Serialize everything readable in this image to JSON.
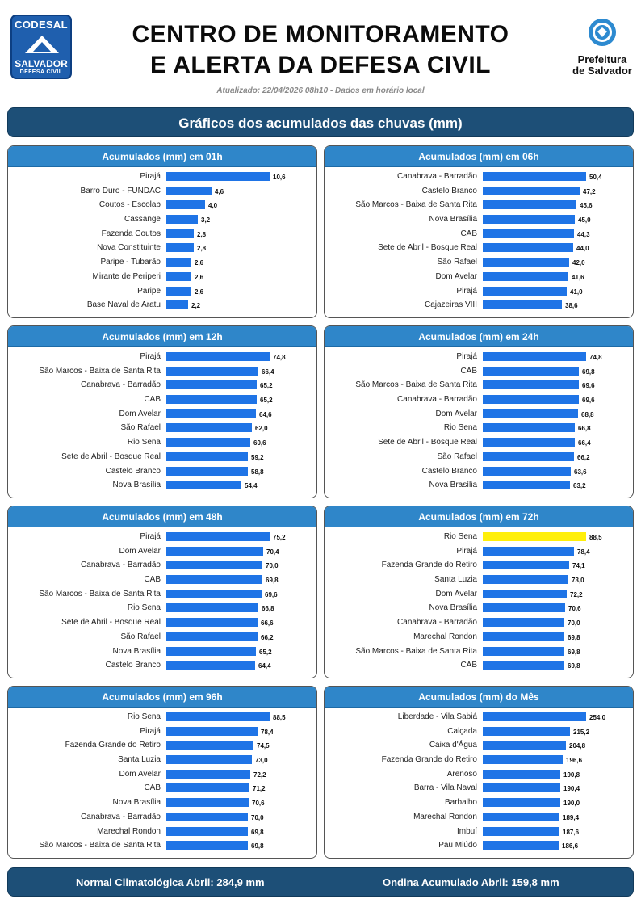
{
  "header": {
    "logo_left": {
      "line1": "CODESAL",
      "line2": "SALVADOR",
      "line3": "DEFESA CIVIL"
    },
    "title_line1": "CENTRO DE MONITORAMENTO",
    "title_line2": "E ALERTA DA DEFESA CIVIL",
    "updated": "Atualizado: 22/04/2026 08h10 - Dados em horário local",
    "logo_right": {
      "line1": "Prefeitura",
      "line2": "de Salvador"
    }
  },
  "banner": "Gráficos dos acumulados das chuvas (mm)",
  "colors": {
    "bar": "#1f74e6",
    "highlight": "#ffef0a",
    "header": "#2f86c9",
    "banner": "#1d4f77"
  },
  "panels": [
    {
      "title": "Acumulados (mm) em 01h",
      "max": 10.6,
      "rows": [
        {
          "label": "Pirajá",
          "value": 10.6,
          "text": "10,6"
        },
        {
          "label": "Barro Duro - FUNDAC",
          "value": 4.6,
          "text": "4,6"
        },
        {
          "label": "Coutos - Escolab",
          "value": 4.0,
          "text": "4,0"
        },
        {
          "label": "Cassange",
          "value": 3.2,
          "text": "3,2"
        },
        {
          "label": "Fazenda Coutos",
          "value": 2.8,
          "text": "2,8"
        },
        {
          "label": "Nova Constituinte",
          "value": 2.8,
          "text": "2,8"
        },
        {
          "label": "Paripe - Tubarão",
          "value": 2.6,
          "text": "2,6"
        },
        {
          "label": "Mirante de Periperi",
          "value": 2.6,
          "text": "2,6"
        },
        {
          "label": "Paripe",
          "value": 2.6,
          "text": "2,6"
        },
        {
          "label": "Base Naval de Aratu",
          "value": 2.2,
          "text": "2,2"
        }
      ]
    },
    {
      "title": "Acumulados (mm) em 06h",
      "max": 50.4,
      "rows": [
        {
          "label": "Canabrava - Barradão",
          "value": 50.4,
          "text": "50,4"
        },
        {
          "label": "Castelo Branco",
          "value": 47.2,
          "text": "47,2"
        },
        {
          "label": "São Marcos - Baixa de Santa Rita",
          "value": 45.6,
          "text": "45,6"
        },
        {
          "label": "Nova Brasília",
          "value": 45.0,
          "text": "45,0"
        },
        {
          "label": "CAB",
          "value": 44.3,
          "text": "44,3"
        },
        {
          "label": "Sete de Abril - Bosque Real",
          "value": 44.0,
          "text": "44,0"
        },
        {
          "label": "São Rafael",
          "value": 42.0,
          "text": "42,0"
        },
        {
          "label": "Dom Avelar",
          "value": 41.6,
          "text": "41,6"
        },
        {
          "label": "Pirajá",
          "value": 41.0,
          "text": "41,0"
        },
        {
          "label": "Cajazeiras VIII",
          "value": 38.6,
          "text": "38,6"
        }
      ]
    },
    {
      "title": "Acumulados (mm) em 12h",
      "max": 74.8,
      "rows": [
        {
          "label": "Pirajá",
          "value": 74.8,
          "text": "74,8"
        },
        {
          "label": "São Marcos - Baixa de Santa Rita",
          "value": 66.4,
          "text": "66,4"
        },
        {
          "label": "Canabrava - Barradão",
          "value": 65.2,
          "text": "65,2"
        },
        {
          "label": "CAB",
          "value": 65.2,
          "text": "65,2"
        },
        {
          "label": "Dom Avelar",
          "value": 64.6,
          "text": "64,6"
        },
        {
          "label": "São Rafael",
          "value": 62.0,
          "text": "62,0"
        },
        {
          "label": "Rio Sena",
          "value": 60.6,
          "text": "60,6"
        },
        {
          "label": "Sete de Abril - Bosque Real",
          "value": 59.2,
          "text": "59,2"
        },
        {
          "label": "Castelo Branco",
          "value": 58.8,
          "text": "58,8"
        },
        {
          "label": "Nova Brasília",
          "value": 54.4,
          "text": "54,4"
        }
      ]
    },
    {
      "title": "Acumulados (mm) em 24h",
      "max": 74.8,
      "rows": [
        {
          "label": "Pirajá",
          "value": 74.8,
          "text": "74,8"
        },
        {
          "label": "CAB",
          "value": 69.8,
          "text": "69,8"
        },
        {
          "label": "São Marcos - Baixa de Santa Rita",
          "value": 69.6,
          "text": "69,6"
        },
        {
          "label": "Canabrava - Barradão",
          "value": 69.6,
          "text": "69,6"
        },
        {
          "label": "Dom Avelar",
          "value": 68.8,
          "text": "68,8"
        },
        {
          "label": "Rio Sena",
          "value": 66.8,
          "text": "66,8"
        },
        {
          "label": "Sete de Abril - Bosque Real",
          "value": 66.4,
          "text": "66,4"
        },
        {
          "label": "São Rafael",
          "value": 66.2,
          "text": "66,2"
        },
        {
          "label": "Castelo Branco",
          "value": 63.6,
          "text": "63,6"
        },
        {
          "label": "Nova Brasília",
          "value": 63.2,
          "text": "63,2"
        }
      ]
    },
    {
      "title": "Acumulados (mm) em 48h",
      "max": 75.2,
      "rows": [
        {
          "label": "Pirajá",
          "value": 75.2,
          "text": "75,2"
        },
        {
          "label": "Dom Avelar",
          "value": 70.4,
          "text": "70,4"
        },
        {
          "label": "Canabrava - Barradão",
          "value": 70.0,
          "text": "70,0"
        },
        {
          "label": "CAB",
          "value": 69.8,
          "text": "69,8"
        },
        {
          "label": "São Marcos - Baixa de Santa Rita",
          "value": 69.6,
          "text": "69,6"
        },
        {
          "label": "Rio Sena",
          "value": 66.8,
          "text": "66,8"
        },
        {
          "label": "Sete de Abril - Bosque Real",
          "value": 66.6,
          "text": "66,6"
        },
        {
          "label": "São Rafael",
          "value": 66.2,
          "text": "66,2"
        },
        {
          "label": "Nova Brasília",
          "value": 65.2,
          "text": "65,2"
        },
        {
          "label": "Castelo Branco",
          "value": 64.4,
          "text": "64,4"
        }
      ]
    },
    {
      "title": "Acumulados (mm) em 72h",
      "max": 88.5,
      "rows": [
        {
          "label": "Rio Sena",
          "value": 88.5,
          "text": "88,5",
          "highlight": true
        },
        {
          "label": "Pirajá",
          "value": 78.4,
          "text": "78,4"
        },
        {
          "label": "Fazenda Grande do Retiro",
          "value": 74.1,
          "text": "74,1"
        },
        {
          "label": "Santa Luzia",
          "value": 73.0,
          "text": "73,0"
        },
        {
          "label": "Dom Avelar",
          "value": 72.2,
          "text": "72,2"
        },
        {
          "label": "Nova Brasília",
          "value": 70.6,
          "text": "70,6"
        },
        {
          "label": "Canabrava - Barradão",
          "value": 70.0,
          "text": "70,0"
        },
        {
          "label": "Marechal Rondon",
          "value": 69.8,
          "text": "69,8"
        },
        {
          "label": "São Marcos - Baixa de Santa Rita",
          "value": 69.8,
          "text": "69,8"
        },
        {
          "label": "CAB",
          "value": 69.8,
          "text": "69,8"
        }
      ]
    },
    {
      "title": "Acumulados (mm) em 96h",
      "max": 88.5,
      "rows": [
        {
          "label": "Rio Sena",
          "value": 88.5,
          "text": "88,5"
        },
        {
          "label": "Pirajá",
          "value": 78.4,
          "text": "78,4"
        },
        {
          "label": "Fazenda Grande do Retiro",
          "value": 74.5,
          "text": "74,5"
        },
        {
          "label": "Santa Luzia",
          "value": 73.0,
          "text": "73,0"
        },
        {
          "label": "Dom Avelar",
          "value": 72.2,
          "text": "72,2"
        },
        {
          "label": "CAB",
          "value": 71.2,
          "text": "71,2"
        },
        {
          "label": "Nova Brasília",
          "value": 70.6,
          "text": "70,6"
        },
        {
          "label": "Canabrava - Barradão",
          "value": 70.0,
          "text": "70,0"
        },
        {
          "label": "Marechal Rondon",
          "value": 69.8,
          "text": "69,8"
        },
        {
          "label": "São Marcos - Baixa de Santa Rita",
          "value": 69.8,
          "text": "69,8"
        }
      ]
    },
    {
      "title": "Acumulados (mm) do Mês",
      "max": 254.0,
      "rows": [
        {
          "label": "Liberdade - Vila Sabiá",
          "value": 254.0,
          "text": "254,0"
        },
        {
          "label": "Calçada",
          "value": 215.2,
          "text": "215,2"
        },
        {
          "label": "Caixa d'Água",
          "value": 204.8,
          "text": "204,8"
        },
        {
          "label": "Fazenda Grande do Retiro",
          "value": 196.6,
          "text": "196,6"
        },
        {
          "label": "Arenoso",
          "value": 190.8,
          "text": "190,8"
        },
        {
          "label": "Barra - Vila Naval",
          "value": 190.4,
          "text": "190,4"
        },
        {
          "label": "Barbalho",
          "value": 190.0,
          "text": "190,0"
        },
        {
          "label": "Marechal Rondon",
          "value": 189.4,
          "text": "189,4"
        },
        {
          "label": "Imbuí",
          "value": 187.6,
          "text": "187,6"
        },
        {
          "label": "Pau Miúdo",
          "value": 186.6,
          "text": "186,6"
        }
      ]
    }
  ],
  "footer": {
    "normal": "Normal Climatológica Abril: 284,9 mm",
    "accumulated": "Ondina Acumulado Abril: 159,8 mm"
  }
}
